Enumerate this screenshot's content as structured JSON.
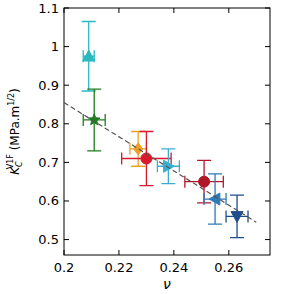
{
  "chart_data": {
    "type": "scatter",
    "x_label": "ν",
    "y_label": {
      "text": "K",
      "sub": "C",
      "sup": "V1F",
      "unit": " (MPa.m",
      "unit_sup": "1/2",
      "unit_end": ")"
    },
    "xlim": [
      0.2,
      0.275
    ],
    "xticks": [
      0.2,
      0.22,
      0.24,
      0.26
    ],
    "ylim": [
      0.46,
      1.1
    ],
    "yticks": [
      0.5,
      0.6,
      0.7,
      0.8,
      0.9,
      1,
      1.1
    ],
    "grid": false,
    "series": [
      {
        "color": "#2ab8c0",
        "marker": "triangle_up",
        "x": [
          0.209
        ],
        "values": [
          0.975
        ],
        "x_error": [
          0.002
        ],
        "y_error": [
          0.09
        ]
      },
      {
        "color": "#1e7d1e",
        "marker": "star",
        "x": [
          0.211
        ],
        "values": [
          0.81
        ],
        "x_error": [
          0.004
        ],
        "y_error": [
          0.08
        ]
      },
      {
        "color": "#f0a020",
        "marker": "diamond",
        "x": [
          0.227
        ],
        "values": [
          0.735
        ],
        "x_error": [
          0.003
        ],
        "y_error": [
          0.045
        ]
      },
      {
        "color": "#d81b2c",
        "marker": "circle",
        "x": [
          0.23
        ],
        "values": [
          0.71
        ],
        "x_error": [
          0.009
        ],
        "y_error": [
          0.07
        ]
      },
      {
        "color": "#3aaed0",
        "marker": "triangle_right",
        "x": [
          0.238
        ],
        "values": [
          0.69
        ],
        "x_error": [
          0.004
        ],
        "y_error": [
          0.045
        ]
      },
      {
        "color": "#b0182a",
        "marker": "circle",
        "x": [
          0.251
        ],
        "values": [
          0.65
        ],
        "x_error": [
          0.007
        ],
        "y_error": [
          0.055
        ]
      },
      {
        "color": "#2c7bb6",
        "marker": "triangle_left",
        "x": [
          0.255
        ],
        "values": [
          0.605
        ],
        "x_error": [
          0.004
        ],
        "y_error": [
          0.065
        ]
      },
      {
        "color": "#1f4e8c",
        "marker": "triangle_down",
        "x": [
          0.263
        ],
        "values": [
          0.56
        ],
        "x_error": [
          0.004
        ],
        "y_error": [
          0.055
        ]
      },
      {
        "type": "line",
        "line_style": "dashed",
        "color": "#555555",
        "x": [
          0.2,
          0.27
        ],
        "values": [
          0.855,
          0.545
        ]
      }
    ]
  }
}
